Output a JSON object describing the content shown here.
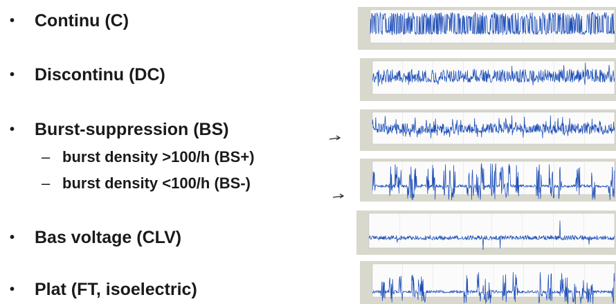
{
  "items": [
    {
      "label": "Continu (C)"
    },
    {
      "label": "Discontinu (DC)"
    },
    {
      "label": "Burst-suppression (BS)",
      "subitems": [
        "burst density >100/h (BS+)",
        "burst density <100/h (BS-)"
      ]
    },
    {
      "label": "Bas voltage (CLV)"
    },
    {
      "label": "Plat (FT, isoelectric)"
    }
  ]
}
